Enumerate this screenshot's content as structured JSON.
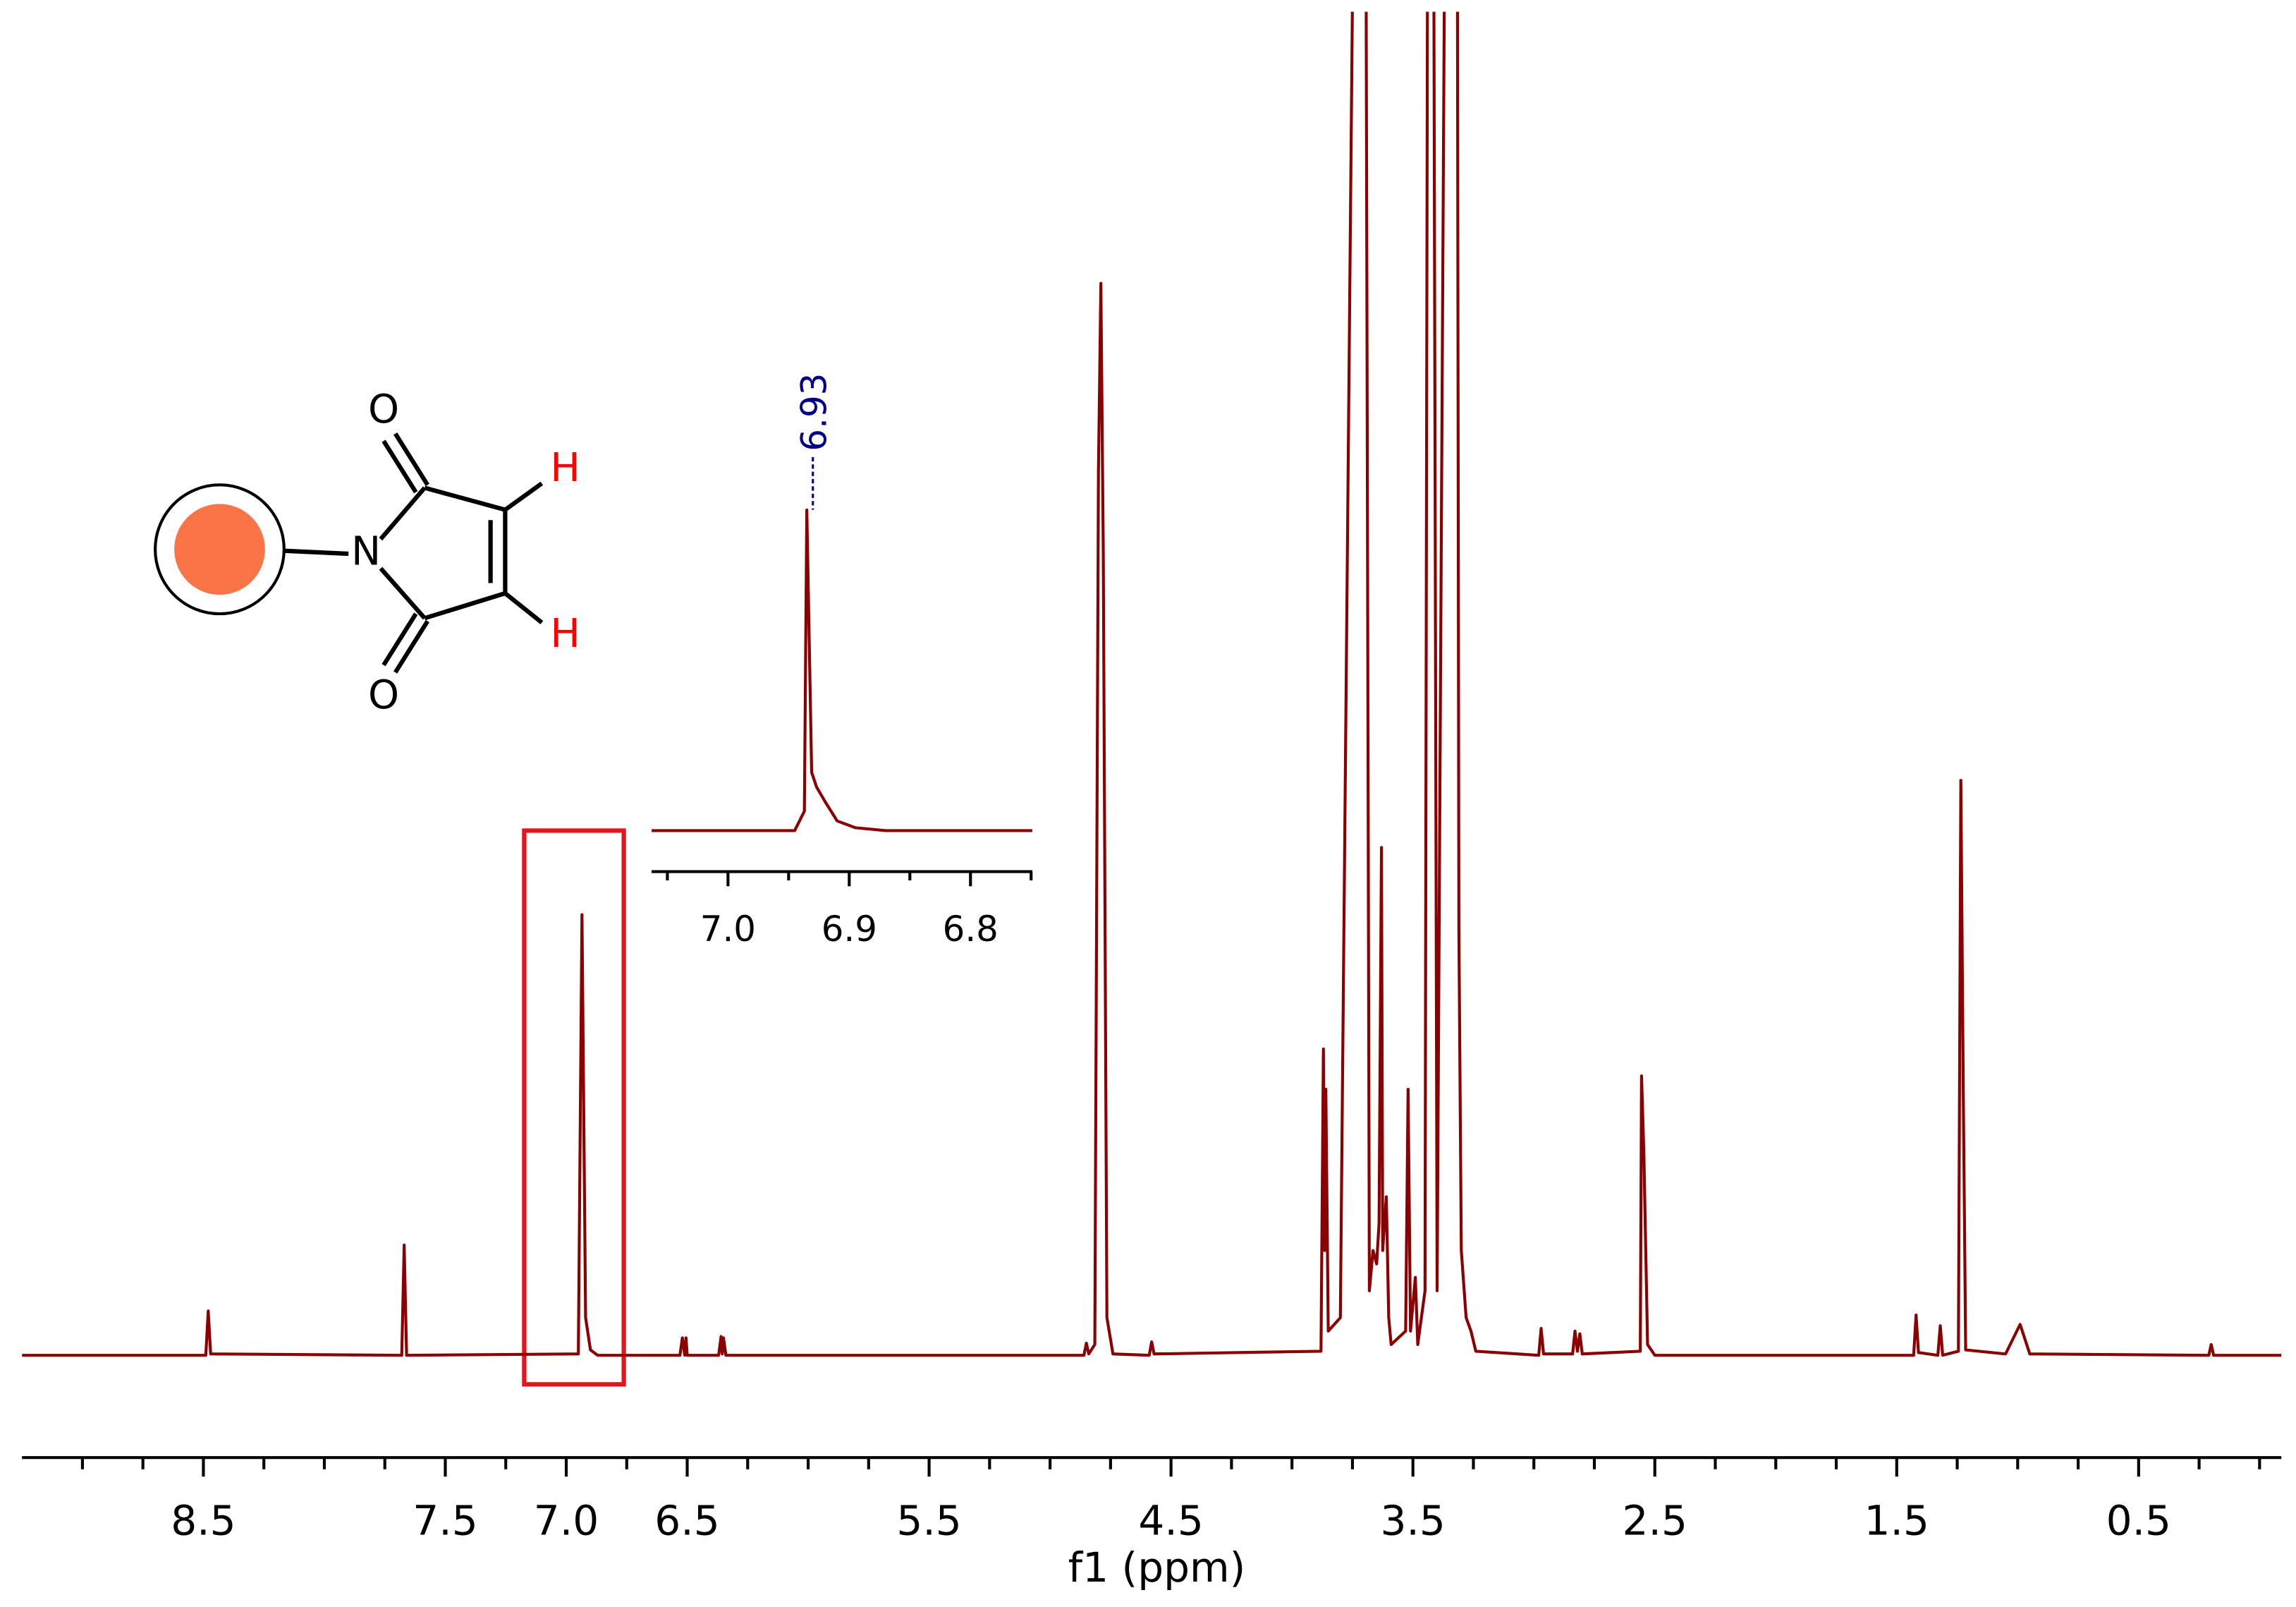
{
  "chart_data": [
    {
      "type": "line",
      "xlabel": "f1 (ppm)",
      "color": "#8b0000",
      "xlim": [
        9.25,
        -0.09
      ],
      "ylim": [
        0,
        100
      ],
      "xticks": [
        8.5,
        7.5,
        {
          "value": 7,
          "label": "7.0"
        },
        6.5,
        5.5,
        4.5,
        3.5,
        2.5,
        1.5,
        0.5
      ],
      "xminorticks": [
        9,
        8.75,
        8.25,
        8,
        7.75,
        7.25,
        6.75,
        6.25,
        6,
        5.75,
        5.25,
        5,
        4.75,
        4.25,
        4,
        3.75,
        3.25,
        3,
        2.75,
        2.25,
        2,
        1.75,
        1.25,
        1,
        0.75,
        0.25,
        0
      ],
      "x": [
        9.25,
        8.49,
        8.48,
        8.47,
        7.68,
        7.67,
        7.66,
        6.95,
        6.935,
        6.92,
        6.9,
        6.87,
        6.53,
        6.52,
        6.51,
        6.505,
        6.5,
        6.37,
        6.36,
        6.355,
        6.35,
        6.34,
        4.86,
        4.85,
        4.84,
        4.815,
        4.8,
        4.79,
        4.78,
        4.765,
        4.74,
        4.59,
        4.58,
        4.57,
        3.88,
        3.87,
        3.865,
        3.86,
        3.85,
        3.8,
        3.725,
        3.7,
        3.68,
        3.665,
        3.65,
        3.64,
        3.63,
        3.625,
        3.61,
        3.6,
        3.59,
        3.53,
        3.52,
        3.51,
        3.49,
        3.48,
        3.45,
        3.435,
        3.42,
        3.4,
        3.355,
        3.32,
        3.31,
        3.3,
        3.28,
        3.26,
        3.24,
        2.98,
        2.97,
        2.96,
        2.84,
        2.83,
        2.82,
        2.81,
        2.8,
        2.56,
        2.555,
        2.545,
        2.53,
        2.5,
        1.43,
        1.42,
        1.41,
        1.33,
        1.32,
        1.31,
        1.245,
        1.235,
        1.225,
        1.215,
        1.05,
        0.99,
        0.95,
        0.21,
        0.2,
        0.19,
        -0.09
      ],
      "values": [
        0.2,
        0.2,
        3.5,
        0.3,
        0.2,
        8.4,
        0.2,
        0.3,
        33,
        3,
        0.6,
        0.2,
        0.2,
        1.5,
        0.2,
        1.5,
        0.2,
        0.2,
        1.6,
        0.3,
        1.5,
        0.2,
        0.2,
        1.1,
        0.3,
        1,
        66,
        80,
        60,
        3,
        0.3,
        0.2,
        1.2,
        0.3,
        0.5,
        23,
        8,
        20,
        2,
        3,
        150,
        150,
        5,
        8,
        7,
        10,
        38,
        8,
        12,
        3,
        1,
        2,
        20,
        2,
        6,
        1,
        5,
        150,
        150,
        5,
        150,
        150,
        32,
        8,
        3,
        2,
        0.5,
        0.2,
        2.2,
        0.3,
        0.3,
        2,
        0.5,
        1.8,
        0.3,
        0.5,
        21,
        15,
        1,
        0.2,
        0.2,
        3.2,
        0.4,
        0.2,
        2.4,
        0.2,
        0.5,
        43,
        20,
        0.6,
        0.3,
        2.5,
        0.3,
        0.2,
        1,
        0.2,
        0.2
      ]
    },
    {
      "type": "line",
      "color": "#8b0000",
      "xlim": [
        7.063,
        6.749
      ],
      "ylim": [
        0,
        38
      ],
      "xticks": [
        {
          "value": 7,
          "label": "7.0"
        },
        6.9,
        6.8
      ],
      "xminorticks": [
        7.05,
        6.95,
        6.85,
        6.75
      ],
      "peak_labels": [
        6.93
      ],
      "x": [
        7.063,
        6.945,
        6.937,
        6.935,
        6.931,
        6.927,
        6.92,
        6.91,
        6.895,
        6.87,
        6.749
      ],
      "values": [
        0,
        0,
        2,
        33,
        6,
        4.5,
        3,
        1,
        0.3,
        0,
        0
      ]
    }
  ],
  "structure": {
    "atoms": [
      "O",
      "N",
      "O",
      "H",
      "H"
    ]
  }
}
